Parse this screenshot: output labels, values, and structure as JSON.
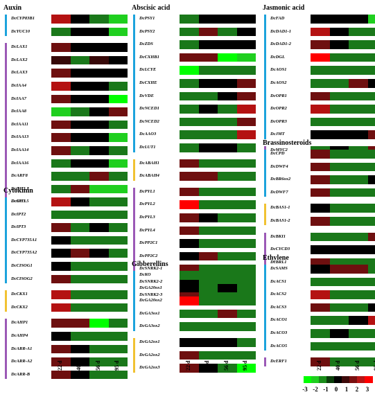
{
  "chart_data": {
    "type": "heatmap",
    "columns": [
      "22 d",
      "40 d",
      "56 d",
      "95 d"
    ],
    "legend_ticks": [
      "-3",
      "-2",
      "-1",
      "0",
      "1",
      "2",
      "3"
    ],
    "legend_colors": [
      "#00ff00",
      "#1fcf1f",
      "#1a8c1a",
      "#0a3d0a",
      "#000000",
      "#3d0a0a",
      "#7a1010",
      "#b81515",
      "#ff0000"
    ],
    "panels": [
      {
        "title": "Auxin",
        "groups": [
          {
            "color": "#1ca3dc",
            "rows": [
              {
                "gene": "DcCYP83B1",
                "values": [
                  2,
                  0,
                  -1,
                  -2
                ]
              },
              {
                "gene": "DcYUC10",
                "values": [
                  -1,
                  0,
                  0,
                  -2
                ]
              }
            ]
          },
          {
            "color": "#9b59b6",
            "rows": [
              {
                "gene": "DcLAX1",
                "values": [
                  1,
                  0,
                  0,
                  0
                ]
              },
              {
                "gene": "DcLAX2",
                "values": [
                  0.5,
                  -1,
                  0.5,
                  0
                ]
              },
              {
                "gene": "DcLAX3",
                "values": [
                  1,
                  0,
                  0,
                  0
                ]
              },
              {
                "gene": "DcIAA4",
                "values": [
                  2,
                  0,
                  0,
                  -1
                ]
              },
              {
                "gene": "DcIAA7",
                "values": [
                  1,
                  0,
                  0,
                  -3
                ]
              },
              {
                "gene": "DcIAA8",
                "values": [
                  -2,
                  -1,
                  0,
                  1
                ]
              },
              {
                "gene": "DcIAA11",
                "values": [
                  1,
                  0,
                  0,
                  -1
                ]
              },
              {
                "gene": "DcIAA13",
                "values": [
                  1,
                  0,
                  0,
                  -2
                ]
              },
              {
                "gene": "DcIAA14",
                "values": [
                  1,
                  -1,
                  0,
                  -1
                ]
              },
              {
                "gene": "DcIAA16",
                "values": [
                  -1,
                  0,
                  0,
                  -2
                ]
              },
              {
                "gene": "DcARF8",
                "values": [
                  -1,
                  -1,
                  1,
                  -1
                ]
              },
              {
                "gene": "DcGH3.1",
                "values": [
                  -1,
                  1,
                  -2,
                  -2
                ]
              },
              {
                "gene": "DcGH3.5",
                "values": [
                  1.5,
                  -1,
                  -2,
                  -2
                ]
              }
            ]
          }
        ]
      },
      {
        "title": "Cytokinin",
        "groups": [
          {
            "color": "#1ca3dc",
            "rows": [
              {
                "gene": "DcIPT1",
                "values": [
                  2,
                  0,
                  -1,
                  -1
                ]
              },
              {
                "gene": "DcIPT2",
                "values": [
                  -1,
                  -1,
                  -1,
                  -1
                ]
              },
              {
                "gene": "DcIPT3",
                "values": [
                  1,
                  -1,
                  0,
                  -1
                ]
              },
              {
                "gene": "DcCYP735A1",
                "values": [
                  0,
                  -1,
                  -1,
                  -1
                ]
              },
              {
                "gene": "DcCYP735A2",
                "values": [
                  0,
                  1,
                  0,
                  -1
                ]
              },
              {
                "gene": "DcCISOG1",
                "values": [
                  0,
                  -1,
                  -1,
                  -1
                ]
              },
              {
                "gene": "DcCISOG2",
                "values": [
                  1,
                  -1,
                  -1,
                  -1
                ]
              }
            ]
          },
          {
            "color": "#f1c232",
            "rows": [
              {
                "gene": "DcCKX1",
                "values": [
                  2,
                  -1,
                  -1,
                  -1
                ]
              },
              {
                "gene": "DcCKX2",
                "values": [
                  2,
                  -1,
                  -1,
                  -1
                ]
              }
            ]
          },
          {
            "color": "#9b59b6",
            "rows": [
              {
                "gene": "DcAHP1",
                "values": [
                  1,
                  1,
                  -3,
                  -1
                ]
              },
              {
                "gene": "DcAHP4",
                "values": [
                  0,
                  -1,
                  -1,
                  -1
                ]
              },
              {
                "gene": "DcARR-A1",
                "values": [
                  1,
                  0,
                  -1,
                  -1
                ]
              },
              {
                "gene": "DcARR-A2",
                "values": [
                  1,
                  0,
                  -1,
                  -1
                ]
              },
              {
                "gene": "DcARR-B",
                "values": [
                  1,
                  0,
                  -1,
                  -1
                ]
              }
            ]
          }
        ]
      },
      {
        "title": "Abscisic acid",
        "groups": [
          {
            "color": "#1ca3dc",
            "rows": [
              {
                "gene": "DcPSY1",
                "values": [
                  -1,
                  0,
                  0,
                  0
                ]
              },
              {
                "gene": "DcPSY2",
                "values": [
                  -1,
                  1,
                  -1,
                  0
                ]
              },
              {
                "gene": "DcZDS",
                "values": [
                  -1,
                  0,
                  0,
                  0
                ]
              },
              {
                "gene": "DcCXHB1",
                "values": [
                  1,
                  1,
                  -3,
                  -2
                ]
              },
              {
                "gene": "DcLCYE",
                "values": [
                  -3,
                  -1,
                  -1,
                  -1
                ]
              },
              {
                "gene": "DcCXHE",
                "values": [
                  -1,
                  0,
                  0,
                  1
                ]
              },
              {
                "gene": "DcVDE",
                "values": [
                  -1,
                  -1,
                  0,
                  1
                ]
              },
              {
                "gene": "DcNCED1",
                "values": [
                  -1,
                  0,
                  -1,
                  2
                ]
              },
              {
                "gene": "DcNCED2",
                "values": [
                  -1,
                  -1,
                  -1,
                  1
                ]
              },
              {
                "gene": "DcAAO3",
                "values": [
                  -1,
                  -1,
                  -1,
                  2
                ]
              },
              {
                "gene": "DcLUT1",
                "values": [
                  -1,
                  0,
                  0,
                  -1
                ]
              }
            ]
          },
          {
            "color": "#f1c232",
            "rows": [
              {
                "gene": "DcABAH1",
                "values": [
                  1,
                  -1,
                  -1,
                  -1
                ]
              },
              {
                "gene": "DcABAH4",
                "values": [
                  1,
                  1,
                  -1,
                  -1
                ]
              }
            ]
          },
          {
            "color": "#9b59b6",
            "rows": [
              {
                "gene": "DcPYL1",
                "values": [
                  1,
                  -1,
                  -1,
                  -1
                ]
              },
              {
                "gene": "DcPYL2",
                "values": [
                  3,
                  -1,
                  -1,
                  -1
                ]
              },
              {
                "gene": "DcPYL3",
                "values": [
                  1,
                  0,
                  -1,
                  -1
                ]
              },
              {
                "gene": "DcPYL4",
                "values": [
                  1,
                  -1,
                  -1,
                  -1
                ]
              },
              {
                "gene": "DcPP2C1",
                "values": [
                  0,
                  -1,
                  -1,
                  -1
                ]
              },
              {
                "gene": "DcPP2C2",
                "values": [
                  0,
                  1,
                  -1,
                  -1
                ]
              },
              {
                "gene": "DcSNRK2-1",
                "values": [
                  1,
                  -1,
                  -1,
                  -1
                ]
              },
              {
                "gene": "DcSNRK2-2",
                "values": [
                  0,
                  -1,
                  -1,
                  -1
                ]
              },
              {
                "gene": "DcSNRK2-3",
                "values": [
                  1,
                  -1,
                  -1,
                  -1
                ]
              }
            ]
          }
        ]
      },
      {
        "title": "Gibberellins",
        "groups": [
          {
            "color": "#1ca3dc",
            "rows": [
              {
                "gene": "DcKO",
                "values": [
                  -1,
                  -1,
                  -1,
                  -1
                ]
              },
              {
                "gene": "DcGA20ox1",
                "values": [
                  0,
                  -1,
                  0,
                  -1
                ]
              },
              {
                "gene": "DcGA20ox2",
                "values": [
                  3,
                  -1,
                  -1,
                  -1
                ]
              },
              {
                "gene": "DcGA3ox1",
                "values": [
                  -1,
                  -1,
                  1,
                  -1
                ]
              },
              {
                "gene": "DcGA3ox2",
                "values": [
                  -1,
                  -1,
                  -1,
                  -1
                ]
              }
            ]
          },
          {
            "color": "#f1c232",
            "rows": [
              {
                "gene": "DcGA2ox1",
                "values": [
                  0,
                  0,
                  0,
                  -1
                ]
              },
              {
                "gene": "DcGA2ox2",
                "values": [
                  1,
                  -1,
                  -1,
                  -1
                ]
              },
              {
                "gene": "DcGA2ox3",
                "values": [
                  1,
                  0,
                  -1,
                  -3
                ]
              }
            ]
          }
        ]
      },
      {
        "title": "Jasmonic acid",
        "groups": [
          {
            "color": "#1ca3dc",
            "rows": [
              {
                "gene": "DcFAD",
                "values": [
                  0,
                  0,
                  0,
                  -2
                ]
              },
              {
                "gene": "DcDAD1-1",
                "values": [
                  2,
                  0,
                  -1,
                  -1
                ]
              },
              {
                "gene": "DcDAD1-2",
                "values": [
                  1,
                  0,
                  -1,
                  -1
                ]
              },
              {
                "gene": "DcDGL",
                "values": [
                  3,
                  -1,
                  -1,
                  -1
                ]
              },
              {
                "gene": "DcAOS1",
                "values": [
                  -1,
                  -1,
                  -1,
                  -1
                ]
              },
              {
                "gene": "DcAOS2",
                "values": [
                  -1,
                  -1,
                  1,
                  0
                ]
              },
              {
                "gene": "DcOPR1",
                "values": [
                  1,
                  -1,
                  -1,
                  -1
                ]
              },
              {
                "gene": "DcOPR2",
                "values": [
                  2,
                  -1,
                  -1,
                  -1
                ]
              },
              {
                "gene": "DcOPR3",
                "values": [
                  -1,
                  -1,
                  -1,
                  -1
                ]
              },
              {
                "gene": "DcJMT",
                "values": [
                  0,
                  0,
                  0,
                  1
                ]
              }
            ]
          },
          {
            "color": "#9b59b6",
            "rows": [
              {
                "gene": "DcMYC2",
                "values": [
                  -1,
                  0,
                  -1,
                  1
                ]
              }
            ]
          }
        ]
      },
      {
        "title": "Brassinosteroids",
        "groups": [
          {
            "color": "#1ca3dc",
            "rows": [
              {
                "gene": "DcCPD",
                "values": [
                  1,
                  -1,
                  -1,
                  -1
                ]
              },
              {
                "gene": "DcDWF4",
                "values": [
                  1,
                  -1,
                  -1,
                  -1
                ]
              },
              {
                "gene": "DcBR6ox2",
                "values": [
                  1,
                  -1,
                  -1,
                  0
                ]
              },
              {
                "gene": "DcDWF7",
                "values": [
                  1,
                  -1,
                  -1,
                  -1
                ]
              }
            ]
          },
          {
            "color": "#f1c232",
            "rows": [
              {
                "gene": "DcBAS1-1",
                "values": [
                  0,
                  -1,
                  -1,
                  -1
                ]
              },
              {
                "gene": "DcBAS1-2",
                "values": [
                  1,
                  -1,
                  -1,
                  -1
                ]
              }
            ]
          },
          {
            "color": "#9b59b6",
            "rows": [
              {
                "gene": "DcBKI1",
                "values": [
                  -1,
                  -1,
                  -1,
                  1
                ]
              },
              {
                "gene": "DcCYCD3",
                "values": [
                  0,
                  0,
                  0,
                  0
                ]
              },
              {
                "gene": "DcBRL1",
                "values": [
                  1,
                  -1,
                  -1,
                  -1
                ]
              }
            ]
          }
        ]
      },
      {
        "title": "Ethylene",
        "groups": [
          {
            "color": "#1ca3dc",
            "rows": [
              {
                "gene": "DcSAMS",
                "values": [
                  0,
                  1,
                  1,
                  -1
                ]
              },
              {
                "gene": "DcACS1",
                "values": [
                  -1,
                  -1,
                  -1,
                  -1
                ]
              },
              {
                "gene": "DcACS2",
                "values": [
                  2,
                  -1,
                  -1,
                  -1
                ]
              },
              {
                "gene": "DcACS3",
                "values": [
                  1,
                  -1,
                  -1,
                  0
                ]
              },
              {
                "gene": "DcACO1",
                "values": [
                  -1,
                  -1,
                  0,
                  2
                ]
              },
              {
                "gene": "DcACO3",
                "values": [
                  -1,
                  0,
                  -1,
                  -1
                ]
              },
              {
                "gene": "DcACO5",
                "values": [
                  -1,
                  -1,
                  -1,
                  -1
                ]
              }
            ]
          },
          {
            "color": "#9b59b6",
            "rows": [
              {
                "gene": "DcERF1",
                "values": [
                  1,
                  -1,
                  -1,
                  -1
                ]
              }
            ]
          }
        ]
      }
    ]
  }
}
